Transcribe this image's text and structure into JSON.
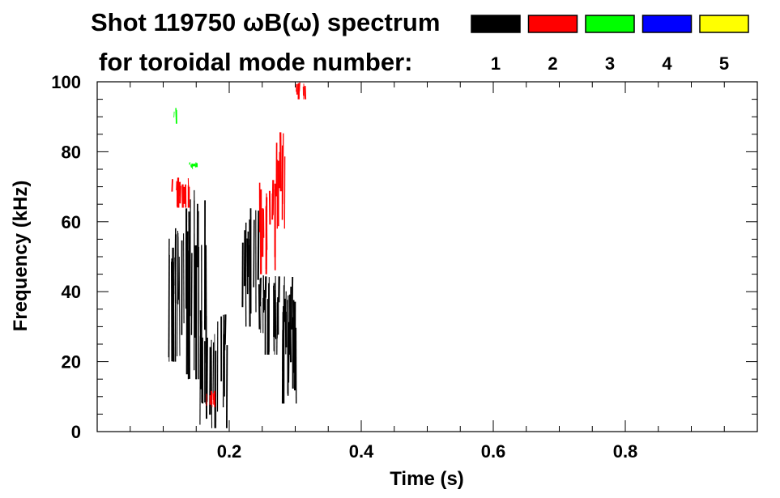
{
  "chart_data": {
    "type": "spectrogram",
    "title": "Shot 119750 ωB(ω) spectrum",
    "subtitle": "for toroidal mode number:",
    "xlabel": "Time (s)",
    "ylabel": "Frequency (kHz)",
    "xlim": [
      0.0,
      1.0
    ],
    "ylim": [
      0,
      100
    ],
    "x_ticks": [
      0.2,
      0.4,
      0.6,
      0.8
    ],
    "x_tick_labels": [
      "0.2",
      "0.4",
      "0.6",
      "0.8"
    ],
    "y_ticks": [
      0,
      20,
      40,
      60,
      80,
      100
    ],
    "y_tick_labels": [
      "0",
      "20",
      "40",
      "60",
      "80",
      "100"
    ],
    "legend": {
      "placement": "top-right",
      "entries": [
        {
          "label": "1",
          "color": "#000000"
        },
        {
          "label": "2",
          "color": "#ff0000"
        },
        {
          "label": "3",
          "color": "#00ff00"
        },
        {
          "label": "4",
          "color": "#0000ff"
        },
        {
          "label": "5",
          "color": "#ffff00"
        }
      ]
    },
    "series": [
      {
        "mode": "1",
        "color": "#000000",
        "regions": [
          {
            "t": [
              0.1,
              0.13
            ],
            "f": [
              20,
              62
            ]
          },
          {
            "t": [
              0.13,
              0.165
            ],
            "f": [
              15,
              70
            ]
          },
          {
            "t": [
              0.155,
              0.2
            ],
            "f": [
              1,
              35
            ]
          },
          {
            "t": [
              0.22,
              0.245
            ],
            "f": [
              30,
              65
            ]
          },
          {
            "t": [
              0.245,
              0.3
            ],
            "f": [
              22,
              45
            ]
          },
          {
            "t": [
              0.28,
              0.305
            ],
            "f": [
              8,
              40
            ]
          }
        ]
      },
      {
        "mode": "2",
        "color": "#ff0000",
        "regions": [
          {
            "t": [
              0.11,
              0.14
            ],
            "f": [
              64,
              73
            ]
          },
          {
            "t": [
              0.165,
              0.18
            ],
            "f": [
              7,
              12
            ]
          },
          {
            "t": [
              0.245,
              0.27
            ],
            "f": [
              45,
              72
            ]
          },
          {
            "t": [
              0.27,
              0.285
            ],
            "f": [
              58,
              86
            ]
          },
          {
            "t": [
              0.3,
              0.315
            ],
            "f": [
              95,
              100
            ]
          }
        ]
      },
      {
        "mode": "3",
        "color": "#00ff00",
        "regions": [
          {
            "t": [
              0.115,
              0.12
            ],
            "f": [
              88,
              93
            ]
          },
          {
            "t": [
              0.14,
              0.155
            ],
            "f": [
              75,
              77
            ]
          }
        ]
      }
    ]
  }
}
